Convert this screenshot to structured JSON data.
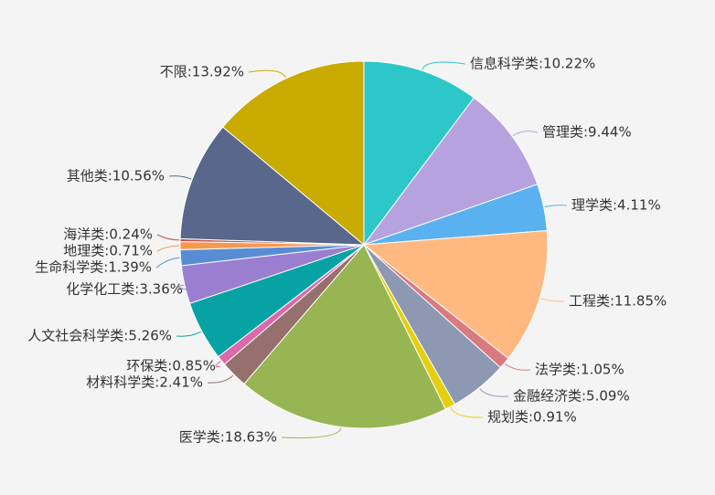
{
  "chart_data": {
    "type": "pie",
    "title": "",
    "legend": "none",
    "slices": [
      {
        "name": "信息科学类",
        "value": 10.22,
        "label": "信息科学类:10.22%",
        "color": "#2ec7c9"
      },
      {
        "name": "管理类",
        "value": 9.44,
        "label": "管理类:9.44%",
        "color": "#b6a2de"
      },
      {
        "name": "理学类",
        "value": 4.11,
        "label": "理学类:4.11%",
        "color": "#5ab1ef"
      },
      {
        "name": "工程类",
        "value": 11.85,
        "label": "工程类:11.85%",
        "color": "#ffb980"
      },
      {
        "name": "法学类",
        "value": 1.05,
        "label": "法学类:1.05%",
        "color": "#d87a80"
      },
      {
        "name": "金融经济类",
        "value": 5.09,
        "label": "金融经济类:5.09%",
        "color": "#8d98b3"
      },
      {
        "name": "规划类",
        "value": 0.91,
        "label": "规划类:0.91%",
        "color": "#e5cf0d"
      },
      {
        "name": "医学类",
        "value": 18.63,
        "label": "医学类:18.63%",
        "color": "#97b552"
      },
      {
        "name": "材料科学类",
        "value": 2.41,
        "label": "材料科学类:2.41%",
        "color": "#95706d"
      },
      {
        "name": "环保类",
        "value": 0.85,
        "label": "环保类:0.85%",
        "color": "#dc69aa"
      },
      {
        "name": "人文社会科学类",
        "value": 5.26,
        "label": "人文社会科学类:5.26%",
        "color": "#07a2a4"
      },
      {
        "name": "化学化工类",
        "value": 3.36,
        "label": "化学化工类:3.36%",
        "color": "#9a7fd1"
      },
      {
        "name": "生命科学类",
        "value": 1.39,
        "label": "生命科学类:1.39%",
        "color": "#588dd5"
      },
      {
        "name": "地理类",
        "value": 0.71,
        "label": "地理类:0.71%",
        "color": "#f5994e"
      },
      {
        "name": "海洋类",
        "value": 0.24,
        "label": "海洋类:0.24%",
        "color": "#c05050"
      },
      {
        "name": "其他类",
        "value": 10.56,
        "label": "其他类:10.56%",
        "color": "#59678c"
      },
      {
        "name": "不限",
        "value": 13.92,
        "label": "不限:13.92%",
        "color": "#c9ab00"
      }
    ]
  }
}
